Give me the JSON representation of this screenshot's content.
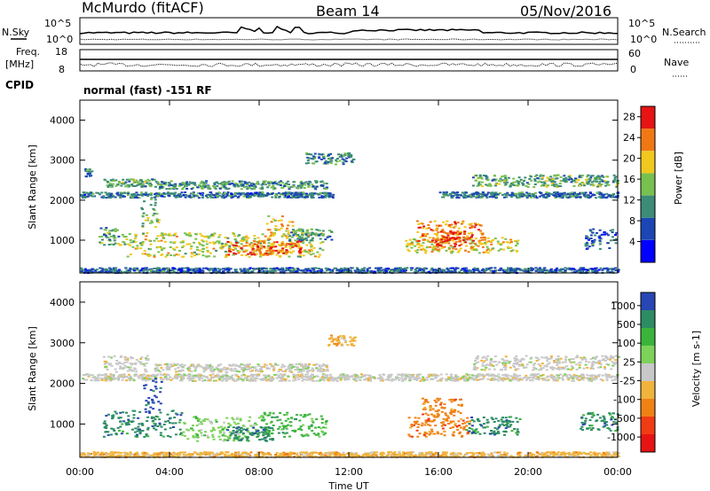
{
  "header": {
    "station": "McMurdo (fitACF)",
    "beam": "Beam 14",
    "date": "05/Nov/2016"
  },
  "top_panels": {
    "nsky_label": "N.Sky",
    "nsearch_label": "N.Search",
    "noise_left_ticks": [
      "10^5",
      "10^0"
    ],
    "noise_right_ticks": [
      "10^5",
      "10^0"
    ],
    "freq_label": "Freq.",
    "freq_unit": "[MHz]",
    "freq_ticks": [
      "18",
      "8"
    ],
    "nave_label": "Nave",
    "nave_ticks": [
      "60",
      "0"
    ],
    "cpid_label": "CPID",
    "cpid_text": "normal (fast) -151 RF"
  },
  "chart_data": [
    {
      "type": "heatmap",
      "title": "",
      "ylabel": "Slant Range [km]",
      "xlabel": "",
      "ylim": [
        180,
        4500
      ],
      "yticks": [
        1000,
        2000,
        3000,
        4000
      ],
      "xlim": [
        0,
        24
      ],
      "xtick_labels": [
        "00:00",
        "04:00",
        "08:00",
        "12:00",
        "16:00",
        "20:00",
        "00:00"
      ],
      "colorbar": {
        "label": "Power [dB]",
        "ticks": [
          "4",
          "8",
          "12",
          "16",
          "20",
          "24",
          "28"
        ],
        "range": [
          0,
          30
        ],
        "colors": [
          "#0000ff",
          "#1c46b4",
          "#3c8c78",
          "#78c050",
          "#f0c81e",
          "#f07814",
          "#e61414"
        ]
      },
      "regions": [
        {
          "t0": 0.2,
          "t1": 0.5,
          "r0": 2600,
          "r1": 2800,
          "v": 10
        },
        {
          "t0": 0.0,
          "t1": 11.3,
          "r0": 2080,
          "r1": 2220,
          "v": 9
        },
        {
          "t0": 1.0,
          "t1": 3.3,
          "r0": 2350,
          "r1": 2550,
          "v": 13
        },
        {
          "t0": 3.3,
          "t1": 11.0,
          "r0": 2300,
          "r1": 2500,
          "v": 11
        },
        {
          "t0": 2.7,
          "t1": 3.5,
          "r0": 1300,
          "r1": 2100,
          "v": 14
        },
        {
          "t0": 0.8,
          "t1": 2.0,
          "r0": 900,
          "r1": 1350,
          "v": 13
        },
        {
          "t0": 2.0,
          "t1": 10.8,
          "r0": 600,
          "r1": 1200,
          "v": 17
        },
        {
          "t0": 6.5,
          "t1": 9.8,
          "r0": 650,
          "r1": 1000,
          "v": 24
        },
        {
          "t0": 8.3,
          "t1": 9.5,
          "r0": 800,
          "r1": 1650,
          "v": 20
        },
        {
          "t0": 9.3,
          "t1": 11.2,
          "r0": 1000,
          "r1": 1300,
          "v": 12
        },
        {
          "t0": 10.0,
          "t1": 12.2,
          "r0": 2900,
          "r1": 3200,
          "v": 10
        },
        {
          "t0": 14.5,
          "t1": 19.5,
          "r0": 700,
          "r1": 1100,
          "v": 19
        },
        {
          "t0": 15.0,
          "t1": 18.0,
          "r0": 1000,
          "r1": 1500,
          "v": 23
        },
        {
          "t0": 15.8,
          "t1": 17.2,
          "r0": 850,
          "r1": 1250,
          "v": 27
        },
        {
          "t0": 16.0,
          "t1": 24.0,
          "r0": 2080,
          "r1": 2220,
          "v": 9
        },
        {
          "t0": 17.5,
          "t1": 24.0,
          "r0": 2350,
          "r1": 2650,
          "v": 13
        },
        {
          "t0": 22.5,
          "t1": 24.0,
          "r0": 800,
          "r1": 1300,
          "v": 8
        },
        {
          "t0": 0.0,
          "t1": 24.0,
          "r0": 200,
          "r1": 330,
          "v": 8
        }
      ]
    },
    {
      "type": "heatmap",
      "title": "",
      "ylabel": "Slant Range [km]",
      "xlabel": "Time UT",
      "ylim": [
        180,
        4500
      ],
      "yticks": [
        1000,
        2000,
        3000,
        4000
      ],
      "xlim": [
        0,
        24
      ],
      "xtick_labels": [
        "00:00",
        "04:00",
        "08:00",
        "12:00",
        "16:00",
        "20:00",
        "00:00"
      ],
      "colorbar": {
        "label": "Velocity [m s-1]",
        "ticks": [
          "1000",
          "500",
          "100",
          "25",
          "-25",
          "-100",
          "-500",
          "-1000"
        ],
        "colors": [
          "#2846b4",
          "#2d8c64",
          "#3cb43c",
          "#7dd25a",
          "#c8c8c8",
          "#f0b43c",
          "#f08214",
          "#f03c14",
          "#e61414"
        ]
      },
      "regions": [
        {
          "t0": 0.0,
          "t1": 24.0,
          "r0": 2080,
          "r1": 2250,
          "c": 4
        },
        {
          "t0": 1.0,
          "t1": 3.0,
          "r0": 2300,
          "r1": 2700,
          "c": 4
        },
        {
          "t0": 17.5,
          "t1": 24.0,
          "r0": 2350,
          "r1": 2700,
          "c": 4
        },
        {
          "t0": 3.3,
          "t1": 11.0,
          "r0": 2300,
          "r1": 2500,
          "c": 4
        },
        {
          "t0": 2.8,
          "t1": 3.6,
          "r0": 1300,
          "r1": 2150,
          "c": 0
        },
        {
          "t0": 1.0,
          "t1": 4.5,
          "r0": 700,
          "r1": 1350,
          "c": 1
        },
        {
          "t0": 4.5,
          "t1": 8.0,
          "r0": 600,
          "r1": 1200,
          "c": 3
        },
        {
          "t0": 8.0,
          "t1": 11.0,
          "r0": 700,
          "r1": 1300,
          "c": 2
        },
        {
          "t0": 6.5,
          "t1": 8.6,
          "r0": 600,
          "r1": 950,
          "c": 1
        },
        {
          "t0": 11.0,
          "t1": 12.3,
          "r0": 2950,
          "r1": 3200,
          "c": 5
        },
        {
          "t0": 14.6,
          "t1": 17.4,
          "r0": 700,
          "r1": 1200,
          "c": 6
        },
        {
          "t0": 15.2,
          "t1": 17.0,
          "r0": 1200,
          "r1": 1650,
          "c": 6
        },
        {
          "t0": 17.2,
          "t1": 19.6,
          "r0": 750,
          "r1": 1200,
          "c": 1
        },
        {
          "t0": 22.3,
          "t1": 24.0,
          "r0": 850,
          "r1": 1300,
          "c": 1
        },
        {
          "t0": 0.0,
          "t1": 24.0,
          "r0": 200,
          "r1": 330,
          "c": 5
        }
      ]
    }
  ]
}
